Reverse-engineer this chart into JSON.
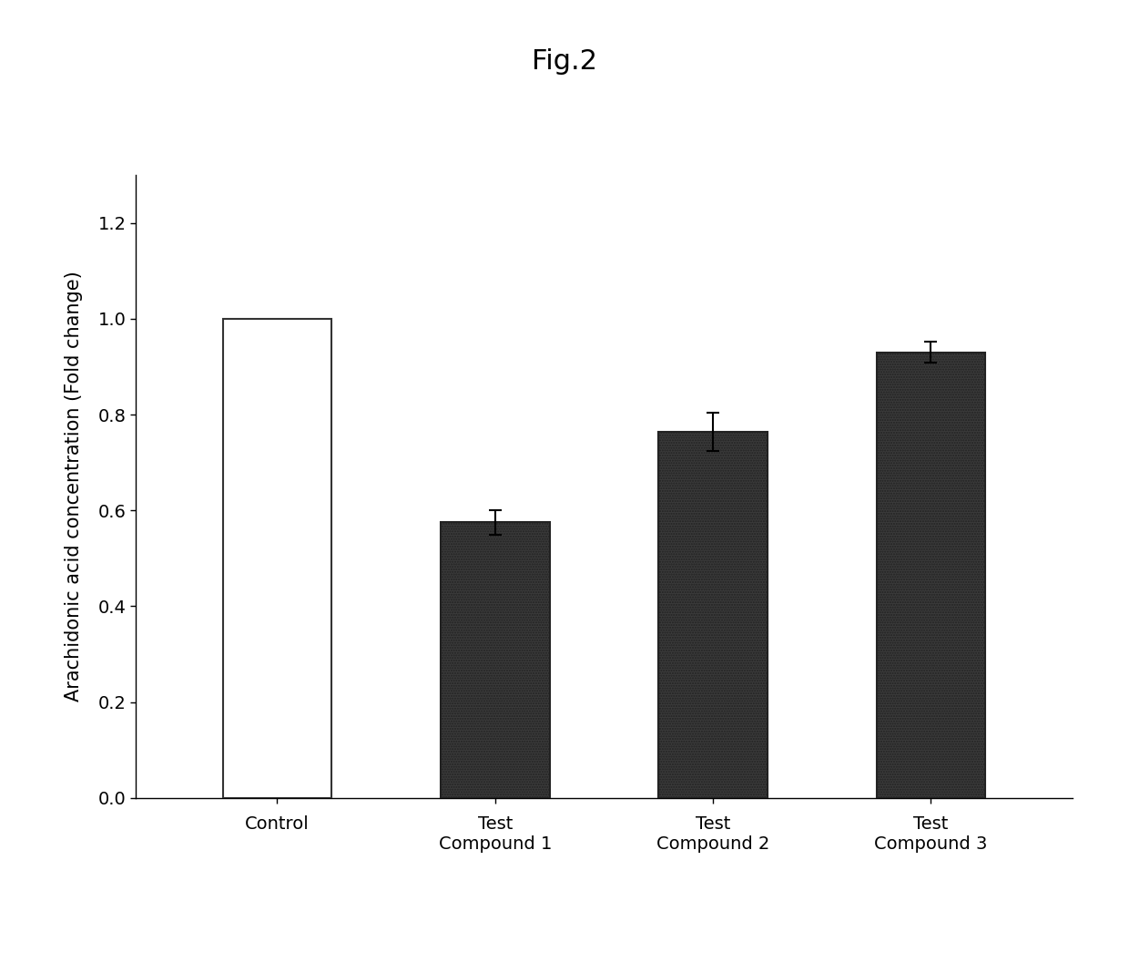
{
  "title": "Fig.2",
  "ylabel": "Arachidonic acid concentration (Fold change)",
  "categories": [
    "Control",
    "Test\nCompound 1",
    "Test\nCompound 2",
    "Test\nCompound 3"
  ],
  "values": [
    1.0,
    0.575,
    0.765,
    0.93
  ],
  "errors": [
    0.0,
    0.025,
    0.04,
    0.022
  ],
  "bar_colors": [
    "#ffffff",
    "#3a3a3a",
    "#3a3a3a",
    "#3a3a3a"
  ],
  "bar_edge_colors": [
    "#333333",
    "#222222",
    "#222222",
    "#222222"
  ],
  "ylim": [
    0,
    1.3
  ],
  "yticks": [
    0,
    0.2,
    0.4,
    0.6,
    0.8,
    1.0,
    1.2
  ],
  "background_color": "#ffffff",
  "fig_background_color": "#ffffff",
  "title_fontsize": 22,
  "label_fontsize": 15,
  "tick_fontsize": 14,
  "bar_width": 0.5,
  "hatch_pattern": "......",
  "control_hatch": ""
}
